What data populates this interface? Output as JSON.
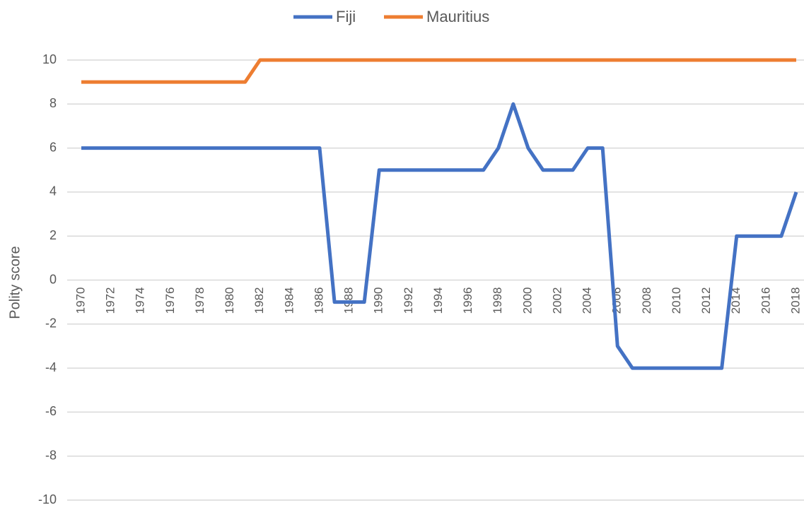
{
  "chart_data": {
    "type": "line",
    "categories": [
      1970,
      null,
      1972,
      null,
      1974,
      null,
      1976,
      null,
      1978,
      null,
      1980,
      null,
      1982,
      null,
      1984,
      null,
      1986,
      null,
      1988,
      null,
      1990,
      null,
      1992,
      null,
      1994,
      null,
      1996,
      null,
      1998,
      null,
      2000,
      null,
      2002,
      null,
      2004,
      null,
      2006,
      null,
      2008,
      null,
      2010,
      null,
      2012,
      null,
      2014,
      null,
      2016,
      null,
      2018
    ],
    "series": [
      {
        "name": "Fiji",
        "color": "#4472c4",
        "values": [
          6,
          6,
          6,
          6,
          6,
          6,
          6,
          6,
          6,
          6,
          6,
          6,
          6,
          6,
          6,
          6,
          6,
          -1,
          -1,
          -1,
          5,
          5,
          5,
          5,
          5,
          5,
          5,
          5,
          6,
          8,
          6,
          5,
          5,
          5,
          6,
          6,
          -3,
          -4,
          -4,
          -4,
          -4,
          -4,
          -4,
          -4,
          2,
          2,
          2,
          2,
          4
        ]
      },
      {
        "name": "Mauritius",
        "color": "#ed7d31",
        "values": [
          9,
          9,
          9,
          9,
          9,
          9,
          9,
          9,
          9,
          9,
          9,
          9,
          10,
          10,
          10,
          10,
          10,
          10,
          10,
          10,
          10,
          10,
          10,
          10,
          10,
          10,
          10,
          10,
          10,
          10,
          10,
          10,
          10,
          10,
          10,
          10,
          10,
          10,
          10,
          10,
          10,
          10,
          10,
          10,
          10,
          10,
          10,
          10,
          10
        ]
      }
    ],
    "y_label": "Polity score",
    "ylim": [
      -10,
      10
    ],
    "yticks": [
      -10,
      -8,
      -6,
      -4,
      -2,
      0,
      2,
      4,
      6,
      8,
      10
    ],
    "grid": true,
    "legend": "top"
  }
}
